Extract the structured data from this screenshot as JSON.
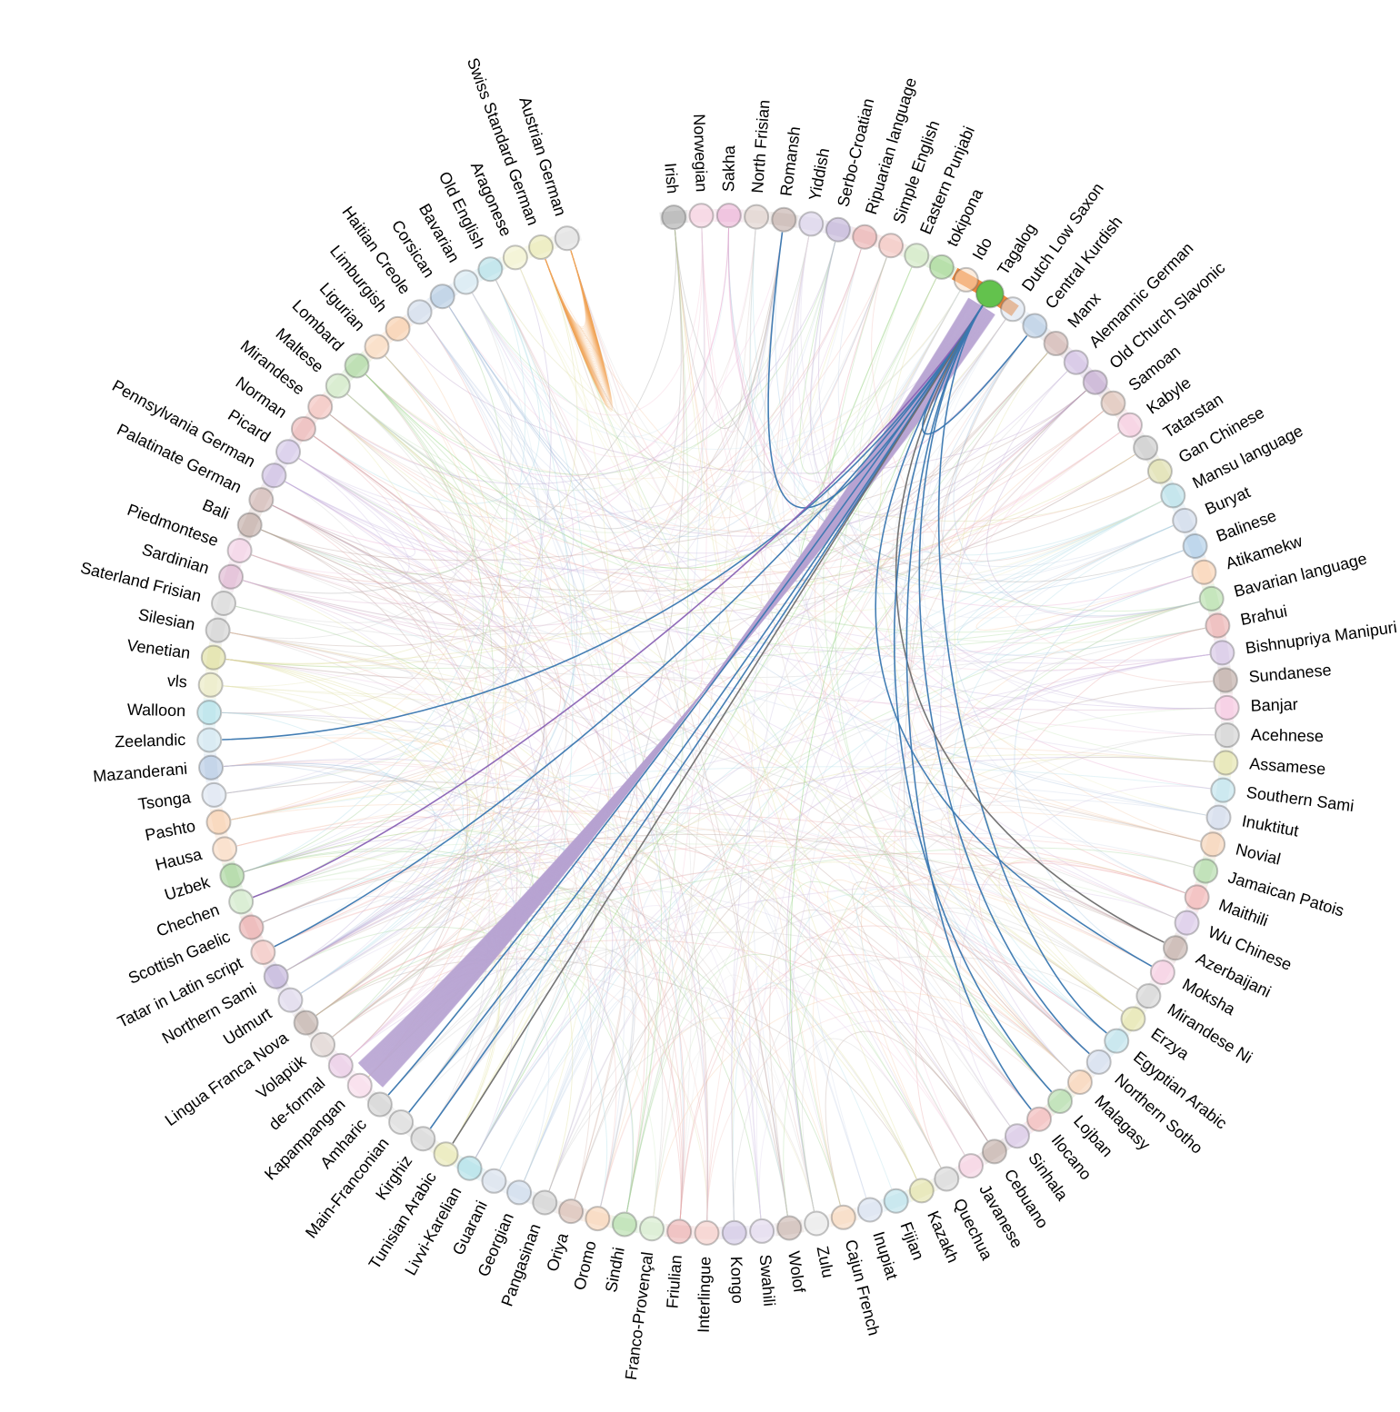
{
  "diagram": {
    "type": "hierarchical-edge-bundling",
    "selected_node": "Tagalog",
    "selected_color": "#63c24d",
    "highlight_link_colors": [
      "#3a77b0",
      "#6e6e6e",
      "#8a63b5"
    ],
    "ribbon_color": "#b8a3d2",
    "nodes": [
      {
        "name": "Irish",
        "color": "#9e9e9e"
      },
      {
        "name": "Norwegian",
        "color": "#f3c6d8"
      },
      {
        "name": "Sakha",
        "color": "#e9a7cf"
      },
      {
        "name": "North Frisian",
        "color": "#d8c8c3"
      },
      {
        "name": "Romansh",
        "color": "#b9a39c"
      },
      {
        "name": "Yiddish",
        "color": "#d3cbe5"
      },
      {
        "name": "Serbo-Croatian",
        "color": "#b7a6d0"
      },
      {
        "name": "Ripuarian language",
        "color": "#e6a3a3"
      },
      {
        "name": "Simple English",
        "color": "#f0b9b4"
      },
      {
        "name": "Eastern Punjabi",
        "color": "#c7e4b7"
      },
      {
        "name": "tokipona",
        "color": "#93cf7f"
      },
      {
        "name": "Ido",
        "color": "#f7ddc2"
      },
      {
        "name": "Tagalog",
        "color": "#63c24d"
      },
      {
        "name": "Dutch Low Saxon",
        "color": "#d9e2ef"
      },
      {
        "name": "Central Kurdish",
        "color": "#a9c2de"
      },
      {
        "name": "Manx",
        "color": "#c9a8a2"
      },
      {
        "name": "Alemannic German",
        "color": "#c7b3dc"
      },
      {
        "name": "Old Church Slavonic",
        "color": "#b89bc7"
      },
      {
        "name": "Samoan",
        "color": "#d7b7a9"
      },
      {
        "name": "Kabyle",
        "color": "#f2c1d7"
      },
      {
        "name": "Tatarstan",
        "color": "#bfbfbf"
      },
      {
        "name": "Gan Chinese",
        "color": "#d7d79a"
      },
      {
        "name": "Mansu language",
        "color": "#a9d9e4"
      },
      {
        "name": "Buryat",
        "color": "#c5d2e6"
      },
      {
        "name": "Balinese",
        "color": "#9ec3e2"
      },
      {
        "name": "Atikamekw",
        "color": "#f7c9a2"
      },
      {
        "name": "Bavarian language",
        "color": "#a9d99a"
      },
      {
        "name": "Brahui",
        "color": "#e8a3a3"
      },
      {
        "name": "Bishnupriya Manipuri",
        "color": "#cdb9e0"
      },
      {
        "name": "Sundanese",
        "color": "#b29b93"
      },
      {
        "name": "Banjar",
        "color": "#f2bcd9"
      },
      {
        "name": "Acehnese",
        "color": "#c9c9c9"
      },
      {
        "name": "Assamese",
        "color": "#dede9a"
      },
      {
        "name": "Southern Sami",
        "color": "#b4dfe9"
      },
      {
        "name": "Inuktitut",
        "color": "#c8d4e8"
      },
      {
        "name": "Novial",
        "color": "#f3c8a5"
      },
      {
        "name": "Jamaican Patois",
        "color": "#a3d397"
      },
      {
        "name": "Maithili",
        "color": "#efa8a8"
      },
      {
        "name": "Wu Chinese",
        "color": "#d1bde2"
      },
      {
        "name": "Azerbaijani",
        "color": "#b8a199"
      },
      {
        "name": "Moksha",
        "color": "#f2c3da"
      },
      {
        "name": "Mirandese Ni",
        "color": "#cccccc"
      },
      {
        "name": "Erzya",
        "color": "#e0e09d"
      },
      {
        "name": "Egyptian Arabic",
        "color": "#b0dde8"
      },
      {
        "name": "Northern Sotho",
        "color": "#cbd6ea"
      },
      {
        "name": "Malagasy",
        "color": "#f5cba7"
      },
      {
        "name": "Lojban",
        "color": "#a6d69a"
      },
      {
        "name": "Ilocano",
        "color": "#eeabab"
      },
      {
        "name": "Sinhala",
        "color": "#d0bce0"
      },
      {
        "name": "Cebuano",
        "color": "#b9a39b"
      },
      {
        "name": "Javanese",
        "color": "#f3c6db"
      },
      {
        "name": "Quechua",
        "color": "#cfcfcf"
      },
      {
        "name": "Kazakh",
        "color": "#dfdf9c"
      },
      {
        "name": "Fijian",
        "color": "#afdde7"
      },
      {
        "name": "Inupiat",
        "color": "#d0daec"
      },
      {
        "name": "Cajun French",
        "color": "#f4d0b0"
      },
      {
        "name": "Zulu",
        "color": "#e6e6e6"
      },
      {
        "name": "Wolof",
        "color": "#c3aba4"
      },
      {
        "name": "Swahili",
        "color": "#dcd2ea"
      },
      {
        "name": "Kongo",
        "color": "#c9bde0"
      },
      {
        "name": "Interlingue",
        "color": "#f2c5c0"
      },
      {
        "name": "Friulian",
        "color": "#e9a6a6"
      },
      {
        "name": "Franco-Provençal",
        "color": "#cde8c3"
      },
      {
        "name": "Sindhi",
        "color": "#a7d79a"
      },
      {
        "name": "Oromo",
        "color": "#f5cca9"
      },
      {
        "name": "Oriya",
        "color": "#d2b3a6"
      },
      {
        "name": "Pangasinan",
        "color": "#c8c8c8"
      },
      {
        "name": "Georgian",
        "color": "#c3d3e7"
      },
      {
        "name": "Guarani",
        "color": "#d0dbe9"
      },
      {
        "name": "Livvi-Karelian",
        "color": "#9fd9e2"
      },
      {
        "name": "Tunisian Arabic",
        "color": "#e4e4a6"
      },
      {
        "name": "Kirghiz",
        "color": "#cdcdcd"
      },
      {
        "name": "Main-Franconian",
        "color": "#d5d5d5"
      },
      {
        "name": "Amharic",
        "color": "#c8c8c8"
      },
      {
        "name": "Kapampangan",
        "color": "#f6d3e6"
      },
      {
        "name": "de-formal",
        "color": "#e5c0e0"
      },
      {
        "name": "Volapük",
        "color": "#d8ccc8"
      },
      {
        "name": "Lingua Franca Nova",
        "color": "#b6a29b"
      },
      {
        "name": "Udmurt",
        "color": "#d7cfe8"
      },
      {
        "name": "Northern Sami",
        "color": "#b5a3d2"
      },
      {
        "name": "Tatar in Latin script",
        "color": "#f0bbb6"
      },
      {
        "name": "Scottish Gaelic",
        "color": "#e59c9c"
      },
      {
        "name": "Chechen",
        "color": "#c9e6bf"
      },
      {
        "name": "Uzbek",
        "color": "#95cc86"
      },
      {
        "name": "Hausa",
        "color": "#f7d4b6"
      },
      {
        "name": "Pashto",
        "color": "#f6c7a0"
      },
      {
        "name": "Tsonga",
        "color": "#d6e0ee"
      },
      {
        "name": "Mazanderani",
        "color": "#a8c0de"
      },
      {
        "name": "Zeelandic",
        "color": "#c7e1ec"
      },
      {
        "name": "Walloon",
        "color": "#a3dbe4"
      },
      {
        "name": "vls",
        "color": "#e6e6b6"
      },
      {
        "name": "Venetian",
        "color": "#d9d98f"
      },
      {
        "name": "Silesian",
        "color": "#c8c8c8"
      },
      {
        "name": "Saterland Frisian",
        "color": "#cfcfcf"
      },
      {
        "name": "Sardinian",
        "color": "#d8a9c9"
      },
      {
        "name": "Piedmontese",
        "color": "#f0c6e0"
      },
      {
        "name": "Bali",
        "color": "#b79c95"
      },
      {
        "name": "Palatinate German",
        "color": "#c8aaa5"
      },
      {
        "name": "Pennsylvania German",
        "color": "#c2b0dc"
      },
      {
        "name": "Picard",
        "color": "#ccbde3"
      },
      {
        "name": "Norman",
        "color": "#e8a8a8"
      },
      {
        "name": "Mirandese",
        "color": "#f0b7b0"
      },
      {
        "name": "Maltese",
        "color": "#c6e3b9"
      },
      {
        "name": "Lombard",
        "color": "#9fd08f"
      },
      {
        "name": "Ligurian",
        "color": "#f8d2b1"
      },
      {
        "name": "Limburgish",
        "color": "#f6c59b"
      },
      {
        "name": "Haitian Creole",
        "color": "#c8d5e8"
      },
      {
        "name": "Corsican",
        "color": "#a6c1dd"
      },
      {
        "name": "Bavarian",
        "color": "#cde4ee"
      },
      {
        "name": "Old English",
        "color": "#a7dae4"
      },
      {
        "name": "Aragonese",
        "color": "#efefc4"
      },
      {
        "name": "Swiss Standard German",
        "color": "#e5e5a7"
      },
      {
        "name": "Austrian German",
        "color": "#d9d9d9"
      }
    ]
  }
}
